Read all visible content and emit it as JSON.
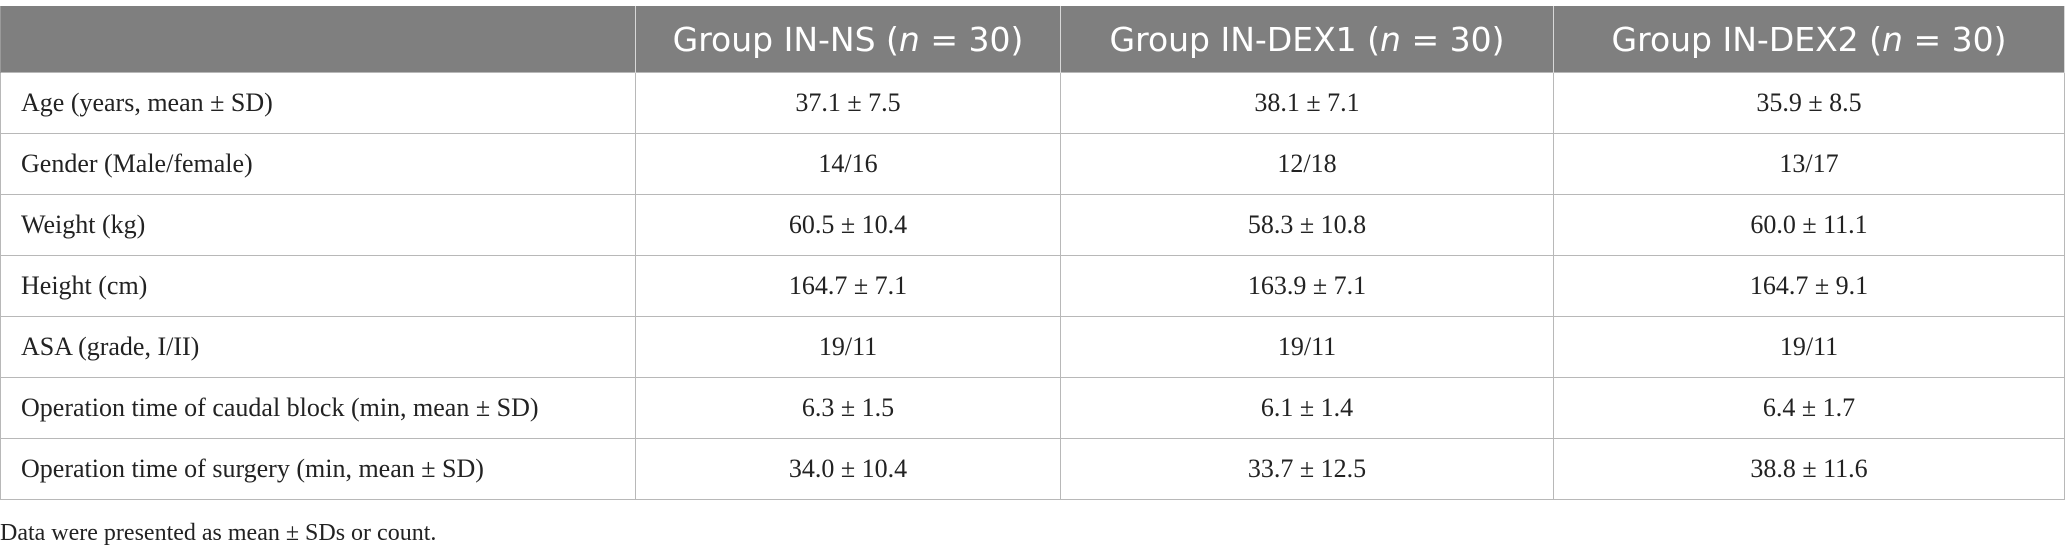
{
  "table": {
    "header": [
      {
        "before": "Group IN-NS (",
        "italic": "n",
        "after": " = 30)"
      },
      {
        "before": "Group IN-DEX1 (",
        "italic": "n",
        "after": " = 30)"
      },
      {
        "before": "Group IN-DEX2 (",
        "italic": "n",
        "after": " = 30)"
      }
    ],
    "rows": [
      [
        "Age (years, mean ± SD)",
        "37.1 ± 7.5",
        "38.1 ± 7.1",
        "35.9 ± 8.5"
      ],
      [
        "Gender (Male/female)",
        "14/16",
        "12/18",
        "13/17"
      ],
      [
        "Weight (kg)",
        "60.5 ± 10.4",
        "58.3 ± 10.8",
        "60.0 ± 11.1"
      ],
      [
        "Height (cm)",
        "164.7 ± 7.1",
        "163.9 ± 7.1",
        "164.7 ± 9.1"
      ],
      [
        "ASA (grade, I/II)",
        "19/11",
        "19/11",
        "19/11"
      ],
      [
        "Operation time of caudal block (min, mean ± SD)",
        "6.3 ± 1.5",
        "6.1 ± 1.4",
        "6.4 ± 1.7"
      ],
      [
        "Operation time of surgery (min, mean ± SD)",
        "34.0 ± 10.4",
        "33.7 ± 12.5",
        "38.8 ± 11.6"
      ]
    ]
  },
  "footnote": "Data were presented as mean ± SDs or count."
}
